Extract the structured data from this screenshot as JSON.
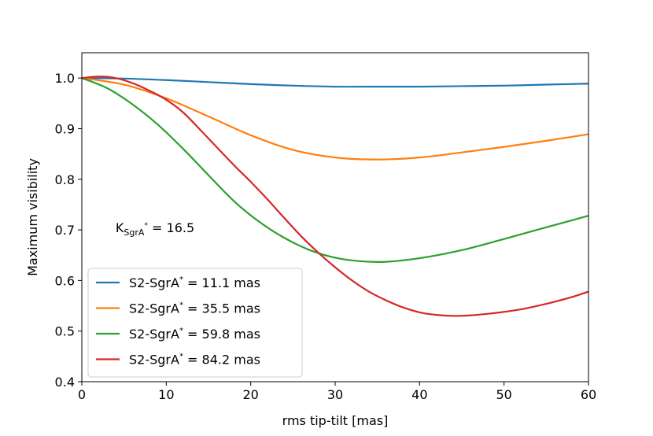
{
  "chart_data": {
    "type": "line",
    "title": "",
    "xlabel": "rms tip-tilt [mas]",
    "ylabel": "Maximum visibility",
    "xlim": [
      0,
      60
    ],
    "ylim": [
      0.4,
      1.05
    ],
    "xticks": [
      0,
      10,
      20,
      30,
      40,
      50,
      60
    ],
    "yticks": [
      0.4,
      0.5,
      0.6,
      0.7,
      0.8,
      0.9,
      1.0
    ],
    "xtick_labels": [
      "0",
      "10",
      "20",
      "30",
      "40",
      "50",
      "60"
    ],
    "ytick_labels": [
      "0.4",
      "0.5",
      "0.6",
      "0.7",
      "0.8",
      "0.9",
      "1.0"
    ],
    "grid": false,
    "legend_position": "bottom-left",
    "annotation": {
      "main": "K",
      "subscript": "SgrA",
      "superscript": "*",
      "rest": " = 16.5",
      "x": 4,
      "y": 0.705
    },
    "legend_prefix": "S2-SgrA",
    "legend_star": "*",
    "series": [
      {
        "name": "S2-SgrA* = 11.1 mas",
        "legend_suffix": " = 11.1 mas",
        "color": "#1f77b4",
        "x": [
          0,
          5,
          10,
          15,
          20,
          25,
          30,
          35,
          40,
          45,
          50,
          55,
          60
        ],
        "y": [
          1.0,
          0.999,
          0.996,
          0.992,
          0.988,
          0.985,
          0.983,
          0.983,
          0.983,
          0.984,
          0.985,
          0.987,
          0.989
        ]
      },
      {
        "name": "S2-SgrA* = 35.5 mas",
        "legend_suffix": " = 35.5 mas",
        "color": "#ff7f0e",
        "x": [
          0,
          5,
          10,
          15,
          20,
          25,
          30,
          35,
          40,
          45,
          50,
          55,
          60
        ],
        "y": [
          1.0,
          0.987,
          0.96,
          0.924,
          0.887,
          0.858,
          0.843,
          0.839,
          0.843,
          0.853,
          0.864,
          0.876,
          0.889
        ]
      },
      {
        "name": "S2-SgrA* = 59.8 mas",
        "legend_suffix": " = 59.8 mas",
        "color": "#2ca02c",
        "x": [
          0,
          3,
          6,
          9,
          12,
          15,
          18,
          21,
          24,
          27,
          30,
          33,
          36,
          40,
          45,
          50,
          55,
          60
        ],
        "y": [
          1.0,
          0.98,
          0.948,
          0.908,
          0.86,
          0.808,
          0.757,
          0.716,
          0.684,
          0.66,
          0.645,
          0.638,
          0.637,
          0.644,
          0.66,
          0.682,
          0.705,
          0.728
        ]
      },
      {
        "name": "S2-SgrA* = 84.2 mas",
        "legend_suffix": " = 84.2 mas",
        "color": "#d62728",
        "x": [
          0,
          2,
          4,
          6,
          8,
          10,
          12,
          14,
          16,
          18,
          20,
          22,
          24,
          26,
          28,
          30,
          32,
          34,
          36,
          38,
          40,
          42,
          44,
          46,
          48,
          50,
          52,
          54,
          56,
          58,
          60
        ],
        "y": [
          1.0,
          1.003,
          1.0,
          0.99,
          0.975,
          0.957,
          0.932,
          0.898,
          0.863,
          0.828,
          0.795,
          0.76,
          0.723,
          0.687,
          0.655,
          0.626,
          0.6,
          0.578,
          0.561,
          0.547,
          0.537,
          0.532,
          0.53,
          0.531,
          0.534,
          0.538,
          0.543,
          0.55,
          0.558,
          0.567,
          0.578
        ]
      }
    ]
  }
}
